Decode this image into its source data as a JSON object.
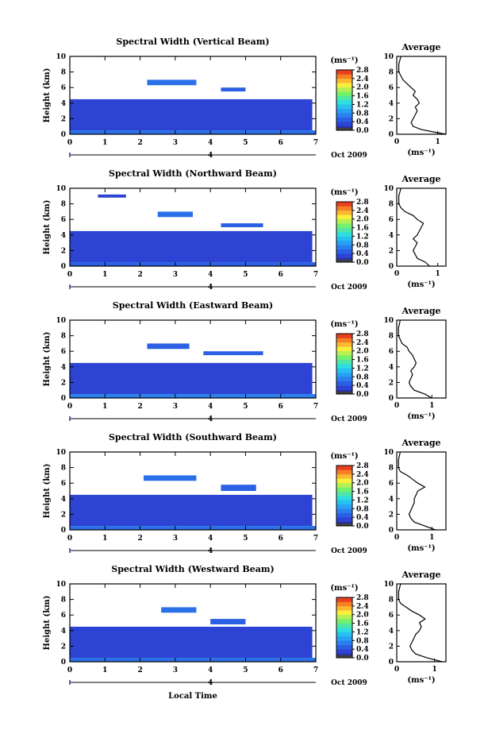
{
  "figure": {
    "xlabel": "Local Time",
    "date_label": "Oct 2009",
    "date_marker": "4",
    "ylabel": "Height (km)",
    "colorbar_unit": "(ms⁻¹)",
    "avg_title": "Average",
    "avg_xlabel": "(ms⁻¹)"
  },
  "chart_data": [
    {
      "type": "heatmap",
      "title": "Spectral Width (Vertical Beam)",
      "xlabel": "",
      "ylabel": "Height (km)",
      "xlim": [
        0,
        7
      ],
      "ylim": [
        0,
        10
      ],
      "xticks": [
        "0",
        "1",
        "2",
        "3",
        "4",
        "5",
        "6",
        "7"
      ],
      "yticks": [
        "0",
        "2",
        "4",
        "6",
        "8",
        "10"
      ],
      "colorbar": {
        "unit": "(ms⁻¹)",
        "range": [
          0,
          2.8
        ],
        "ticks": [
          "0.0",
          "0.4",
          "0.8",
          "1.2",
          "1.6",
          "2.0",
          "2.4",
          "2.8"
        ]
      },
      "layers": [
        {
          "hmin": 0,
          "hmax": 0.5,
          "value": 0.6
        },
        {
          "hmin": 0.5,
          "hmax": 4.5,
          "value": 0.3,
          "xmax": 6.9
        },
        {
          "hmin": 5.5,
          "hmax": 6.0,
          "value": 0.5,
          "xmin": 4.3,
          "xmax": 5.0
        },
        {
          "hmin": 6.3,
          "hmax": 7.0,
          "value": 0.6,
          "xmin": 2.2,
          "xmax": 3.6
        }
      ],
      "average": {
        "xlim": [
          0,
          1.2
        ],
        "xticks": [
          "0",
          "1"
        ],
        "height": [
          0,
          0.3,
          0.6,
          1,
          1.5,
          2,
          2.5,
          3,
          3.5,
          4,
          4.5,
          5,
          5.5,
          6,
          6.5,
          7,
          7.5,
          8,
          9,
          10
        ],
        "value": [
          1.2,
          0.9,
          0.6,
          0.4,
          0.35,
          0.4,
          0.45,
          0.5,
          0.45,
          0.55,
          0.5,
          0.4,
          0.45,
          0.35,
          0.25,
          0.15,
          0.1,
          0.05,
          0.05,
          0.1
        ]
      }
    },
    {
      "type": "heatmap",
      "title": "Spectral Width (Northward Beam)",
      "xlabel": "",
      "ylabel": "Height (km)",
      "xlim": [
        0,
        7
      ],
      "ylim": [
        0,
        10
      ],
      "xticks": [
        "0",
        "1",
        "2",
        "3",
        "4",
        "5",
        "6",
        "7"
      ],
      "yticks": [
        "0",
        "2",
        "4",
        "6",
        "8",
        "10"
      ],
      "colorbar": {
        "unit": "(ms⁻¹)",
        "range": [
          0,
          2.8
        ],
        "ticks": [
          "0.0",
          "0.4",
          "0.8",
          "1.2",
          "1.6",
          "2.0",
          "2.4",
          "2.8"
        ]
      },
      "layers": [
        {
          "hmin": 0,
          "hmax": 0.5,
          "value": 0.5
        },
        {
          "hmin": 0.5,
          "hmax": 4.5,
          "value": 0.3,
          "xmax": 6.9
        },
        {
          "hmin": 5.0,
          "hmax": 5.5,
          "value": 0.5,
          "xmin": 4.3,
          "xmax": 5.5
        },
        {
          "hmin": 6.3,
          "hmax": 7.0,
          "value": 0.6,
          "xmin": 2.5,
          "xmax": 3.5
        },
        {
          "hmin": 8.8,
          "hmax": 9.2,
          "value": 0.3,
          "xmin": 0.8,
          "xmax": 1.6
        }
      ],
      "average": {
        "xlim": [
          0,
          1.2
        ],
        "xticks": [
          "0",
          "1"
        ],
        "height": [
          0,
          0.5,
          1,
          1.5,
          2,
          2.5,
          3,
          3.5,
          4,
          4.5,
          5,
          5.5,
          6,
          6.5,
          7,
          7.5,
          8,
          9,
          10
        ],
        "value": [
          0.8,
          0.7,
          0.5,
          0.45,
          0.4,
          0.45,
          0.5,
          0.4,
          0.5,
          0.55,
          0.6,
          0.65,
          0.5,
          0.4,
          0.2,
          0.1,
          0.05,
          0.05,
          0.1
        ]
      }
    },
    {
      "type": "heatmap",
      "title": "Spectral Width (Eastward Beam)",
      "xlabel": "",
      "ylabel": "Height (km)",
      "xlim": [
        0,
        7
      ],
      "ylim": [
        0,
        10
      ],
      "xticks": [
        "0",
        "1",
        "2",
        "3",
        "4",
        "5",
        "6",
        "7"
      ],
      "yticks": [
        "0",
        "2",
        "4",
        "6",
        "8",
        "10"
      ],
      "colorbar": {
        "unit": "(ms⁻¹)",
        "range": [
          0,
          2.8
        ],
        "ticks": [
          "0.0",
          "0.4",
          "0.8",
          "1.2",
          "1.6",
          "2.0",
          "2.4",
          "2.8"
        ]
      },
      "layers": [
        {
          "hmin": 0,
          "hmax": 0.5,
          "value": 0.7
        },
        {
          "hmin": 0.5,
          "hmax": 4.5,
          "value": 0.3,
          "xmax": 6.9
        },
        {
          "hmin": 5.5,
          "hmax": 6.0,
          "value": 0.5,
          "xmin": 3.8,
          "xmax": 5.5
        },
        {
          "hmin": 6.3,
          "hmax": 7.0,
          "value": 0.5,
          "xmin": 2.2,
          "xmax": 3.4
        }
      ],
      "average": {
        "xlim": [
          0,
          1.4
        ],
        "xticks": [
          "0",
          "1"
        ],
        "height": [
          0,
          0.5,
          1,
          1.5,
          2,
          2.5,
          3,
          3.5,
          4,
          4.5,
          5,
          5.5,
          6,
          6.5,
          7,
          7.5,
          8,
          9,
          10
        ],
        "value": [
          1.0,
          0.8,
          0.5,
          0.4,
          0.35,
          0.4,
          0.45,
          0.4,
          0.5,
          0.55,
          0.5,
          0.45,
          0.35,
          0.3,
          0.15,
          0.1,
          0.05,
          0.05,
          0.1
        ]
      }
    },
    {
      "type": "heatmap",
      "title": "Spectral Width (Southward Beam)",
      "xlabel": "",
      "ylabel": "Height (km)",
      "xlim": [
        0,
        7
      ],
      "ylim": [
        0,
        10
      ],
      "xticks": [
        "0",
        "1",
        "2",
        "3",
        "4",
        "5",
        "6",
        "7"
      ],
      "yticks": [
        "0",
        "2",
        "4",
        "6",
        "8",
        "10"
      ],
      "colorbar": {
        "unit": "(ms⁻¹)",
        "range": [
          0,
          2.8
        ],
        "ticks": [
          "0.0",
          "0.4",
          "0.8",
          "1.2",
          "1.6",
          "2.0",
          "2.4",
          "2.8"
        ]
      },
      "layers": [
        {
          "hmin": 0,
          "hmax": 0.5,
          "value": 0.6
        },
        {
          "hmin": 0.5,
          "hmax": 4.5,
          "value": 0.3,
          "xmax": 6.9
        },
        {
          "hmin": 5.0,
          "hmax": 5.8,
          "value": 0.5,
          "xmin": 4.3,
          "xmax": 5.3
        },
        {
          "hmin": 6.3,
          "hmax": 7.0,
          "value": 0.6,
          "xmin": 2.1,
          "xmax": 3.6
        }
      ],
      "average": {
        "xlim": [
          0,
          1.4
        ],
        "xticks": [
          "0",
          "1"
        ],
        "height": [
          0,
          0.5,
          1,
          1.5,
          2,
          2.5,
          3,
          3.5,
          4,
          4.5,
          5,
          5.5,
          6,
          6.5,
          7,
          7.5,
          8,
          9,
          10
        ],
        "value": [
          1.1,
          0.8,
          0.5,
          0.4,
          0.35,
          0.4,
          0.45,
          0.5,
          0.5,
          0.55,
          0.6,
          0.8,
          0.6,
          0.45,
          0.3,
          0.1,
          0.05,
          0.05,
          0.1
        ]
      }
    },
    {
      "type": "heatmap",
      "title": "Spectral Width (Westward Beam)",
      "xlabel": "Local Time",
      "ylabel": "Height (km)",
      "xlim": [
        0,
        7
      ],
      "ylim": [
        0,
        10
      ],
      "xticks": [
        "0",
        "1",
        "2",
        "3",
        "4",
        "5",
        "6",
        "7"
      ],
      "yticks": [
        "0",
        "2",
        "4",
        "6",
        "8",
        "10"
      ],
      "colorbar": {
        "unit": "(ms⁻¹)",
        "range": [
          0,
          2.8
        ],
        "ticks": [
          "0.0",
          "0.4",
          "0.8",
          "1.2",
          "1.6",
          "2.0",
          "2.4",
          "2.8"
        ]
      },
      "layers": [
        {
          "hmin": 0,
          "hmax": 0.5,
          "value": 0.6
        },
        {
          "hmin": 0.5,
          "hmax": 4.5,
          "value": 0.3,
          "xmax": 6.9
        },
        {
          "hmin": 4.8,
          "hmax": 5.5,
          "value": 0.5,
          "xmin": 4.0,
          "xmax": 5.0
        },
        {
          "hmin": 6.3,
          "hmax": 7.0,
          "value": 0.6,
          "xmin": 2.6,
          "xmax": 3.6
        }
      ],
      "average": {
        "xlim": [
          0,
          1.3
        ],
        "xticks": [
          "0",
          "1"
        ],
        "height": [
          0,
          0.5,
          1,
          1.5,
          2,
          2.5,
          3,
          3.5,
          4,
          4.5,
          5,
          5.5,
          6,
          6.5,
          7,
          7.5,
          8,
          9,
          10
        ],
        "value": [
          1.2,
          0.8,
          0.5,
          0.4,
          0.35,
          0.4,
          0.45,
          0.5,
          0.6,
          0.65,
          0.6,
          0.75,
          0.6,
          0.4,
          0.25,
          0.1,
          0.05,
          0.05,
          0.1
        ]
      }
    }
  ]
}
